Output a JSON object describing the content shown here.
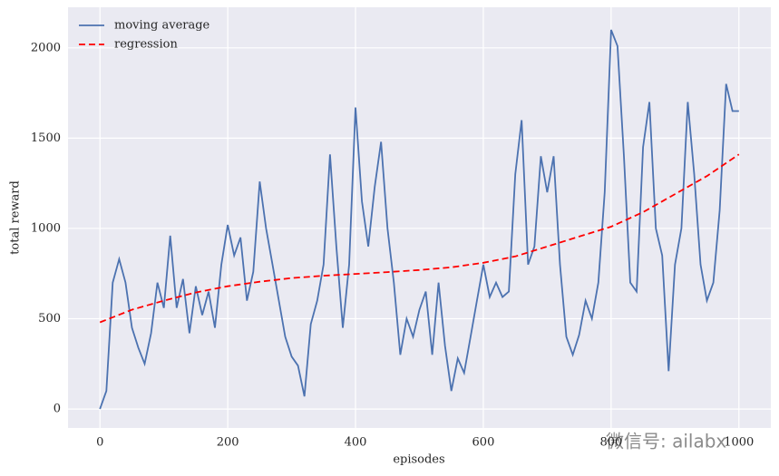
{
  "chart_data": {
    "type": "line",
    "xlabel": "episodes",
    "ylabel": "total reward",
    "xlim": [
      -50,
      1050
    ],
    "ylim": [
      -105,
      2225
    ],
    "xticks": [
      0,
      200,
      400,
      600,
      800,
      1000
    ],
    "yticks": [
      0,
      500,
      1000,
      1500,
      2000
    ],
    "grid": true,
    "legend": "upper left",
    "watermark": "微信号: ailabx",
    "series": [
      {
        "name": "moving average",
        "color": "#4c72b0",
        "dash": "solid",
        "x": [
          0,
          10,
          20,
          30,
          40,
          50,
          60,
          70,
          80,
          90,
          100,
          110,
          120,
          130,
          140,
          150,
          160,
          170,
          180,
          190,
          200,
          210,
          220,
          230,
          240,
          250,
          260,
          270,
          280,
          290,
          300,
          310,
          320,
          330,
          340,
          350,
          360,
          370,
          380,
          390,
          400,
          410,
          420,
          430,
          440,
          450,
          460,
          470,
          480,
          490,
          500,
          510,
          520,
          530,
          540,
          550,
          560,
          570,
          580,
          590,
          600,
          610,
          620,
          630,
          640,
          650,
          660,
          670,
          680,
          690,
          700,
          710,
          720,
          730,
          740,
          750,
          760,
          770,
          780,
          790,
          800,
          810,
          820,
          830,
          840,
          850,
          860,
          870,
          880,
          890,
          900,
          910,
          920,
          930,
          940,
          950,
          960,
          970,
          980,
          990,
          1000
        ],
        "values": [
          0,
          100,
          700,
          830,
          700,
          450,
          340,
          250,
          420,
          700,
          560,
          960,
          560,
          720,
          420,
          680,
          520,
          650,
          450,
          800,
          1020,
          850,
          950,
          600,
          760,
          1260,
          1000,
          800,
          600,
          400,
          290,
          240,
          70,
          470,
          600,
          800,
          1410,
          900,
          450,
          800,
          1670,
          1150,
          900,
          1230,
          1480,
          1000,
          700,
          300,
          500,
          400,
          550,
          650,
          300,
          700,
          350,
          100,
          280,
          200,
          400,
          600,
          800,
          620,
          700,
          620,
          650,
          1300,
          1600,
          800,
          900,
          1400,
          1200,
          1400,
          800,
          400,
          300,
          410,
          600,
          500,
          700,
          1200,
          2100,
          2010,
          1400,
          700,
          650,
          1450,
          1700,
          1000,
          850,
          210,
          800,
          1000,
          1700,
          1300,
          800,
          600,
          700,
          1100,
          1800,
          1650,
          1650
        ]
      },
      {
        "name": "regression",
        "color": "#ff0000",
        "dash": "dashed",
        "x": [
          0,
          50,
          100,
          150,
          200,
          250,
          300,
          350,
          400,
          450,
          500,
          550,
          600,
          650,
          700,
          750,
          800,
          850,
          900,
          950,
          1000
        ],
        "values": [
          480,
          550,
          600,
          645,
          680,
          705,
          725,
          738,
          748,
          758,
          770,
          785,
          810,
          845,
          900,
          955,
          1010,
          1090,
          1190,
          1290,
          1410
        ]
      }
    ]
  }
}
